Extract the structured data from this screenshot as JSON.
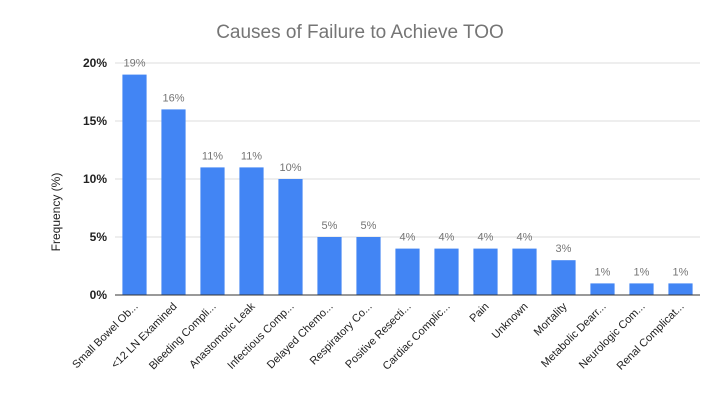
{
  "chart_data": {
    "type": "bar",
    "title": "Causes of Failure to Achieve TOO",
    "xlabel": "",
    "ylabel": "Frequency (%)",
    "ylim": [
      0,
      20
    ],
    "yticks": [
      "0%",
      "5%",
      "10%",
      "15%",
      "20%"
    ],
    "ytick_values": [
      0,
      5,
      10,
      15,
      20
    ],
    "grid": true,
    "legend": "none",
    "color": "#4285f4",
    "categories": [
      "Small Bowel Ob...",
      "<12 LN Examined",
      "Bleeding Compli...",
      "Anastomotic Leak",
      "Infectious Comp...",
      "Delayed Chemo...",
      "Respiratory Co...",
      "Positive Resecti...",
      "Cardiac Complic...",
      "Pain",
      "Unknown",
      "Mortality",
      "Metabolic Dearr...",
      "Neurologic Com...",
      "Renal Complicat..."
    ],
    "values": [
      19,
      16,
      11,
      11,
      10,
      5,
      5,
      4,
      4,
      4,
      4,
      3,
      1,
      1,
      1
    ],
    "data_labels": [
      "19%",
      "16%",
      "11%",
      "11%",
      "10%",
      "5%",
      "5%",
      "4%",
      "4%",
      "4%",
      "4%",
      "3%",
      "1%",
      "1%",
      "1%"
    ]
  }
}
